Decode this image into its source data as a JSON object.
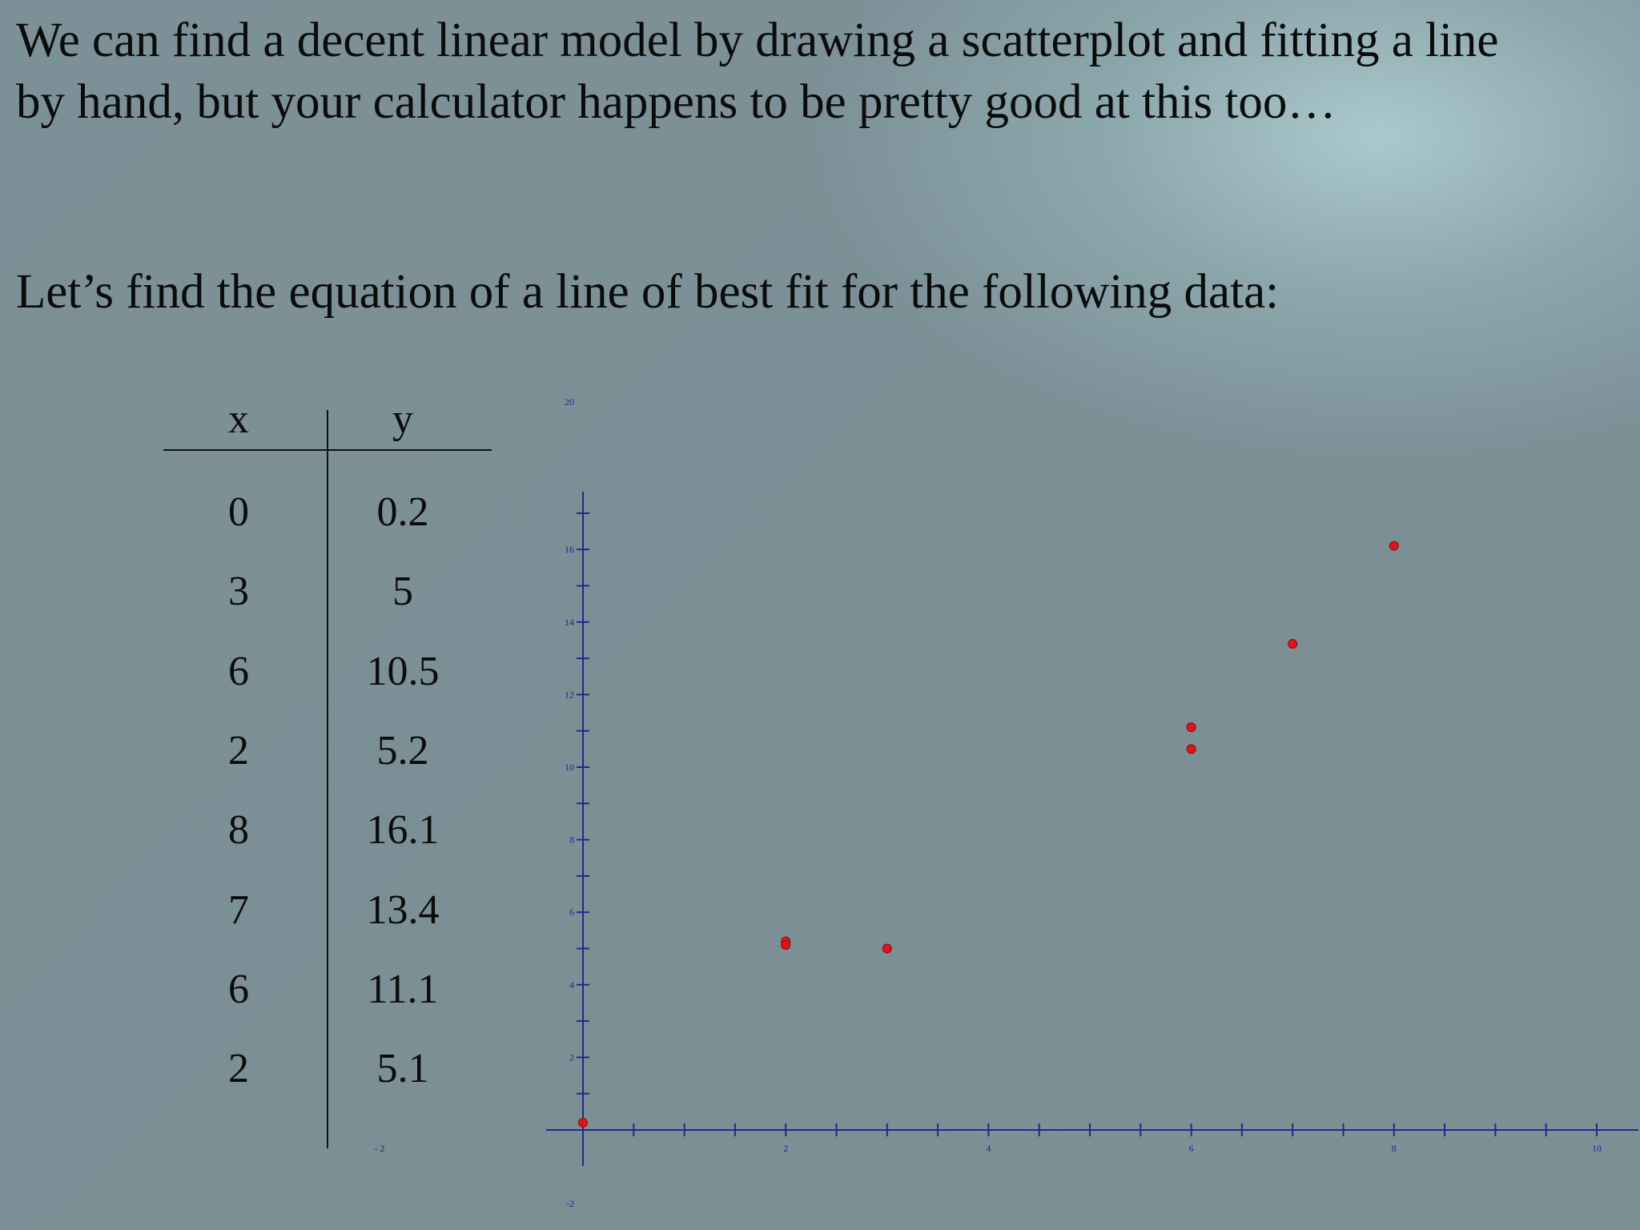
{
  "slide": {
    "intro_line_1": "We can find a decent linear model by drawing a scatterplot and fitting a line",
    "intro_line_2": "by hand, but your calculator happens to be pretty good at this too…",
    "question": "Let’s find the equation of a line of best fit for the following data:"
  },
  "table": {
    "headers": [
      "x",
      "y"
    ],
    "rows": [
      {
        "x": "0",
        "y": "0.2"
      },
      {
        "x": "3",
        "y": "5"
      },
      {
        "x": "6",
        "y": "10.5"
      },
      {
        "x": "2",
        "y": "5.2"
      },
      {
        "x": "8",
        "y": "16.1"
      },
      {
        "x": "7",
        "y": "13.4"
      },
      {
        "x": "6",
        "y": "11.1"
      },
      {
        "x": "2",
        "y": "5.1"
      }
    ]
  },
  "chart_data": {
    "type": "scatter",
    "title": "",
    "xlabel": "",
    "ylabel": "",
    "xlim": [
      -2,
      10
    ],
    "ylim": [
      -2,
      20
    ],
    "x_ticks_labeled": [
      -2,
      2,
      4,
      6,
      8,
      10
    ],
    "y_ticks_labeled": [
      -2,
      2,
      4,
      6,
      8,
      10,
      12,
      14,
      16,
      20
    ],
    "grid": false,
    "legend": "none",
    "point_color": "#e0131a",
    "axis_color": "#1f2a8c",
    "points": [
      {
        "x": 0,
        "y": 0.2
      },
      {
        "x": 3,
        "y": 5
      },
      {
        "x": 6,
        "y": 10.5
      },
      {
        "x": 2,
        "y": 5.2
      },
      {
        "x": 8,
        "y": 16.1
      },
      {
        "x": 7,
        "y": 13.4
      },
      {
        "x": 6,
        "y": 11.1
      },
      {
        "x": 2,
        "y": 5.1
      }
    ]
  }
}
